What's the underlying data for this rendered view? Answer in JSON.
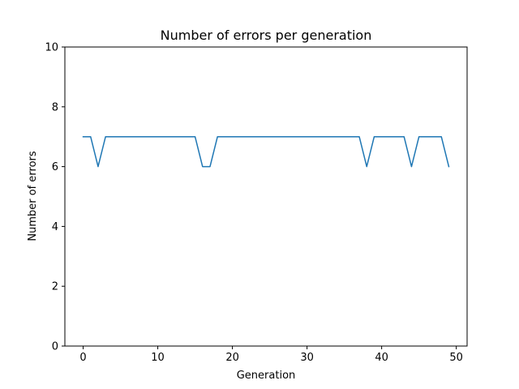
{
  "chart_data": {
    "type": "line",
    "title": "Number of errors per generation",
    "xlabel": "Generation",
    "ylabel": "Number of errors",
    "xlim": [
      -2.45,
      51.45
    ],
    "ylim": [
      0,
      10
    ],
    "xticks": [
      0,
      10,
      20,
      30,
      40,
      50
    ],
    "yticks": [
      0,
      2,
      4,
      6,
      8,
      10
    ],
    "grid": false,
    "series": [
      {
        "color": "#1f77b4",
        "x": [
          0,
          1,
          2,
          3,
          4,
          5,
          6,
          7,
          8,
          9,
          10,
          11,
          12,
          13,
          14,
          15,
          16,
          17,
          18,
          19,
          20,
          21,
          22,
          23,
          24,
          25,
          26,
          27,
          28,
          29,
          30,
          31,
          32,
          33,
          34,
          35,
          36,
          37,
          38,
          39,
          40,
          41,
          42,
          43,
          44,
          45,
          46,
          47,
          48,
          49
        ],
        "y": [
          7,
          7,
          6,
          7,
          7,
          7,
          7,
          7,
          7,
          7,
          7,
          7,
          7,
          7,
          7,
          7,
          6,
          6,
          7,
          7,
          7,
          7,
          7,
          7,
          7,
          7,
          7,
          7,
          7,
          7,
          7,
          7,
          7,
          7,
          7,
          7,
          7,
          7,
          6,
          7,
          7,
          7,
          7,
          7,
          6,
          7,
          7,
          7,
          7,
          6
        ]
      }
    ]
  }
}
